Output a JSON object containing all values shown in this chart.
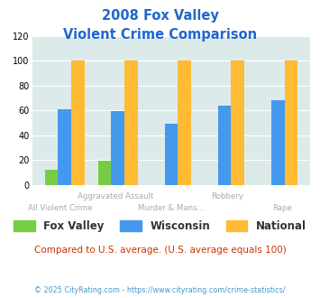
{
  "title_line1": "2008 Fox Valley",
  "title_line2": "Violent Crime Comparison",
  "categories_top": [
    "",
    "Aggravated Assault",
    "",
    "Robbery",
    ""
  ],
  "categories_bot": [
    "All Violent Crime",
    "",
    "Murder & Mans...",
    "",
    "Rape"
  ],
  "fox_valley": [
    12,
    19,
    0,
    0,
    0
  ],
  "wisconsin": [
    61,
    59,
    49,
    64,
    68
  ],
  "national": [
    100,
    100,
    100,
    100,
    100
  ],
  "color_fox_valley": "#77cc44",
  "color_wisconsin": "#4499ee",
  "color_national": "#ffbb33",
  "color_title": "#2266cc",
  "color_bg": "#ddeaea",
  "ylim": [
    0,
    120
  ],
  "yticks": [
    0,
    20,
    40,
    60,
    80,
    100,
    120
  ],
  "note": "Compared to U.S. average. (U.S. average equals 100)",
  "footer": "© 2025 CityRating.com - https://www.cityrating.com/crime-statistics/",
  "legend_labels": [
    "Fox Valley",
    "Wisconsin",
    "National"
  ],
  "bar_width": 0.25
}
